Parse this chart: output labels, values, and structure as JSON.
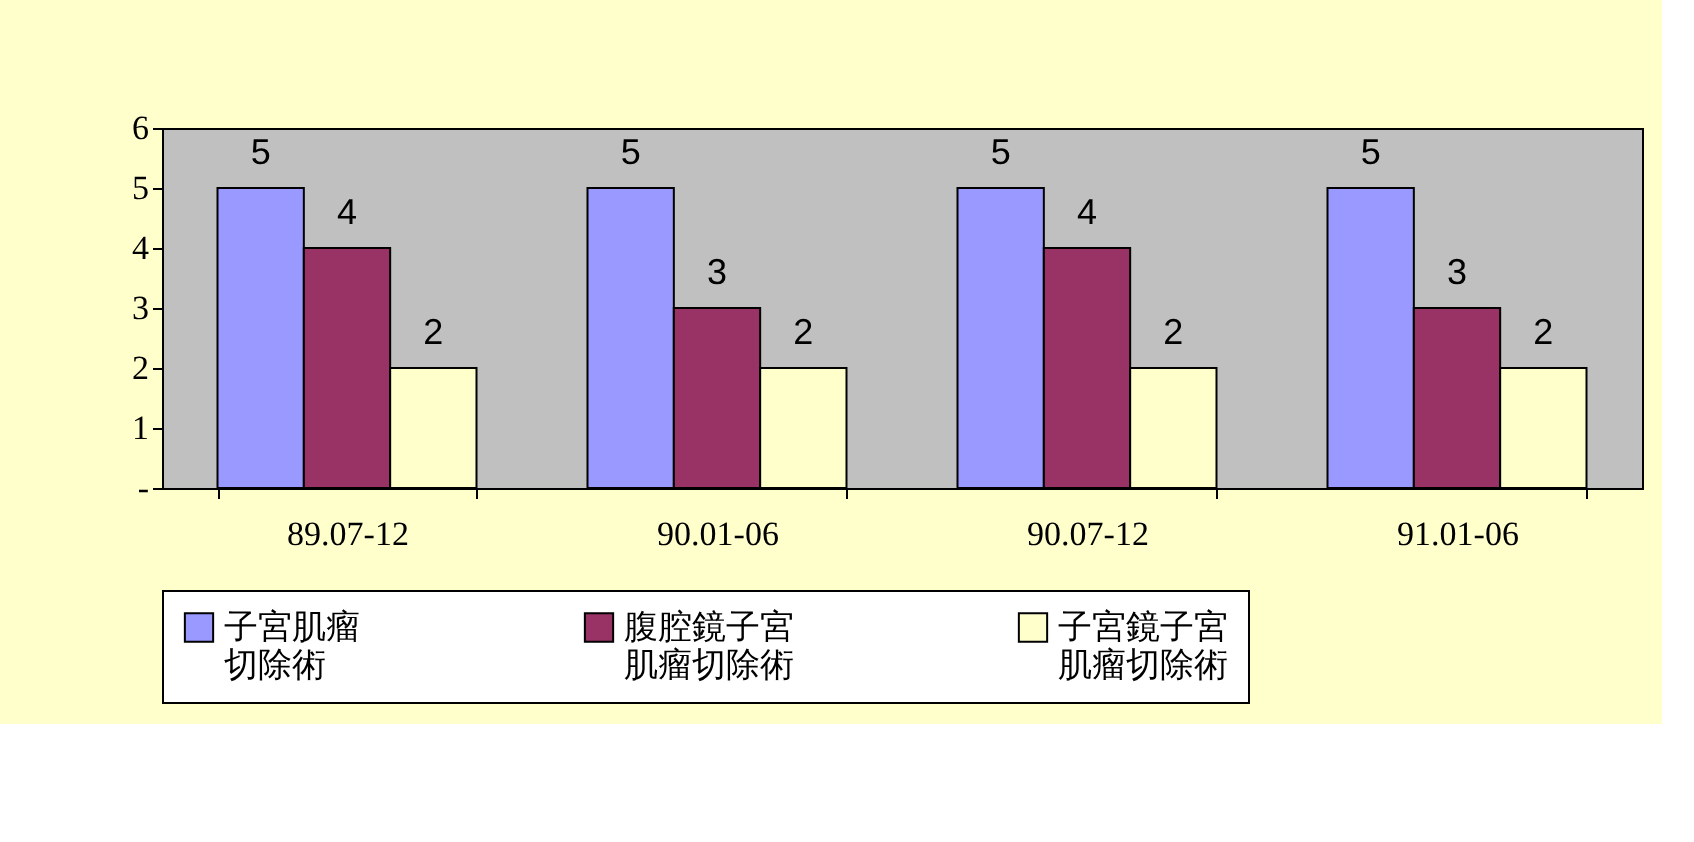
{
  "chart_data": {
    "type": "bar",
    "categories": [
      "89.07-12",
      "90.01-06",
      "90.07-12",
      "91.01-06"
    ],
    "series": [
      {
        "name": "子宮肌瘤切除術",
        "color": "#9999ff",
        "values": [
          5,
          5,
          5,
          5
        ]
      },
      {
        "name": "腹腔鏡子宮肌瘤切除術",
        "color": "#993366",
        "values": [
          4,
          3,
          4,
          3
        ]
      },
      {
        "name": "子宮鏡子宮肌瘤切除術",
        "color": "#ffffcc",
        "values": [
          2,
          2,
          2,
          2
        ]
      }
    ],
    "ylim": [
      0,
      6
    ],
    "yticks": [
      {
        "value": 0,
        "label": "-"
      },
      1,
      2,
      3,
      4,
      5,
      6
    ],
    "grid": false,
    "legend": "bottom",
    "data_labels": true
  }
}
